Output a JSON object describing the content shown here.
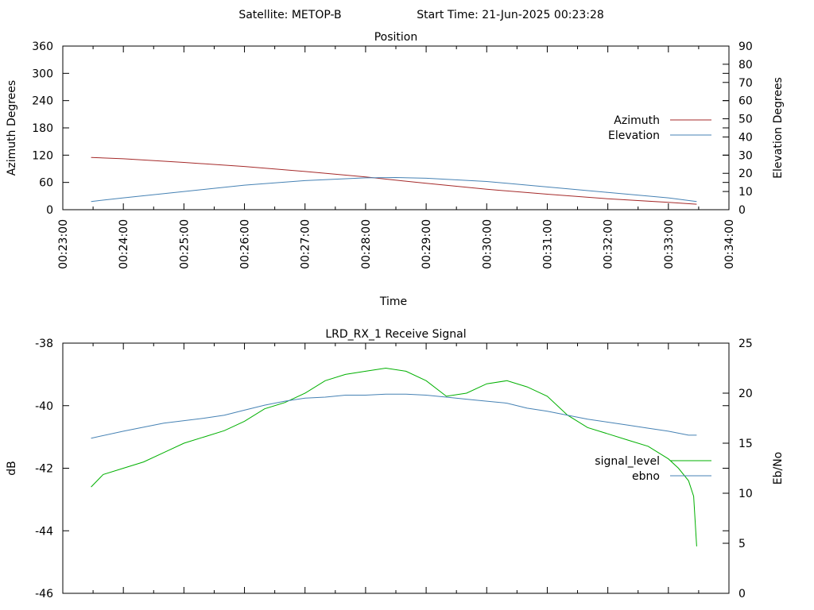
{
  "header": {
    "satellite": "Satellite: METOP-B",
    "start_time": "Start Time: 21-Jun-2025 00:23:28"
  },
  "chart_data": [
    {
      "type": "line",
      "title": "Position",
      "xlabel": "Time",
      "ylabel": "Azimuth Degrees",
      "y2label": "Elevation Degrees",
      "x_ticks": [
        "00:23:00",
        "00:24:00",
        "00:25:00",
        "00:26:00",
        "00:27:00",
        "00:28:00",
        "00:29:00",
        "00:30:00",
        "00:31:00",
        "00:32:00",
        "00:33:00",
        "00:34:00"
      ],
      "xlim_seconds_after_00_23_00": [
        0,
        660
      ],
      "ylim": [
        0,
        360
      ],
      "y_ticks": [
        0,
        60,
        120,
        180,
        240,
        300,
        360
      ],
      "y2lim": [
        0,
        90
      ],
      "y2_ticks": [
        0,
        10,
        20,
        30,
        40,
        50,
        60,
        70,
        80,
        90
      ],
      "legend_position": "right",
      "series": [
        {
          "name": "Azimuth",
          "axis": "y",
          "color": "#a52a2a",
          "x": [
            28,
            60,
            120,
            180,
            240,
            300,
            360,
            420,
            480,
            540,
            600,
            628
          ],
          "y": [
            115,
            112,
            104,
            95,
            84,
            72,
            58,
            45,
            34,
            24,
            16,
            12
          ]
        },
        {
          "name": "Elevation",
          "axis": "y2",
          "color": "#4682b4",
          "x": [
            28,
            60,
            120,
            180,
            240,
            300,
            330,
            360,
            420,
            480,
            540,
            600,
            628
          ],
          "y": [
            4.5,
            6.5,
            10,
            13.5,
            16,
            17.5,
            17.7,
            17.3,
            15.5,
            12.5,
            9.5,
            6.5,
            4.5
          ]
        }
      ]
    },
    {
      "type": "line",
      "title": "LRD_RX_1 Receive Signal",
      "xlabel": "",
      "ylabel": "dB",
      "y2label": "Eb/No",
      "xlim_seconds_after_00_23_00": [
        0,
        660
      ],
      "ylim": [
        -46,
        -38
      ],
      "y_ticks": [
        -46,
        -44,
        -42,
        -40,
        -38
      ],
      "y2lim": [
        0,
        25
      ],
      "y2_ticks": [
        0,
        5,
        10,
        15,
        20,
        25
      ],
      "legend_position": "right",
      "series": [
        {
          "name": "signal_level",
          "axis": "y",
          "color": "#00b000",
          "x": [
            28,
            40,
            60,
            80,
            100,
            120,
            140,
            160,
            180,
            200,
            220,
            240,
            260,
            280,
            300,
            320,
            340,
            360,
            380,
            400,
            420,
            440,
            460,
            480,
            500,
            520,
            540,
            560,
            580,
            600,
            610,
            620,
            625,
            628
          ],
          "y": [
            -42.6,
            -42.2,
            -42.0,
            -41.8,
            -41.5,
            -41.2,
            -41.0,
            -40.8,
            -40.5,
            -40.1,
            -39.9,
            -39.6,
            -39.2,
            -39.0,
            -38.9,
            -38.8,
            -38.9,
            -39.2,
            -39.7,
            -39.6,
            -39.3,
            -39.2,
            -39.4,
            -39.7,
            -40.3,
            -40.7,
            -40.9,
            -41.1,
            -41.3,
            -41.7,
            -42.0,
            -42.4,
            -42.9,
            -44.5
          ]
        },
        {
          "name": "ebno",
          "axis": "y2",
          "color": "#4682b4",
          "x": [
            28,
            60,
            100,
            140,
            160,
            180,
            200,
            220,
            240,
            260,
            280,
            300,
            320,
            340,
            360,
            380,
            400,
            420,
            440,
            460,
            480,
            500,
            520,
            540,
            560,
            580,
            600,
            620,
            628
          ],
          "y": [
            15.5,
            16.2,
            17.0,
            17.5,
            17.8,
            18.3,
            18.8,
            19.2,
            19.5,
            19.6,
            19.8,
            19.8,
            19.9,
            19.9,
            19.8,
            19.6,
            19.4,
            19.2,
            19.0,
            18.5,
            18.2,
            17.8,
            17.4,
            17.1,
            16.8,
            16.5,
            16.2,
            15.8,
            15.8
          ]
        }
      ]
    }
  ]
}
